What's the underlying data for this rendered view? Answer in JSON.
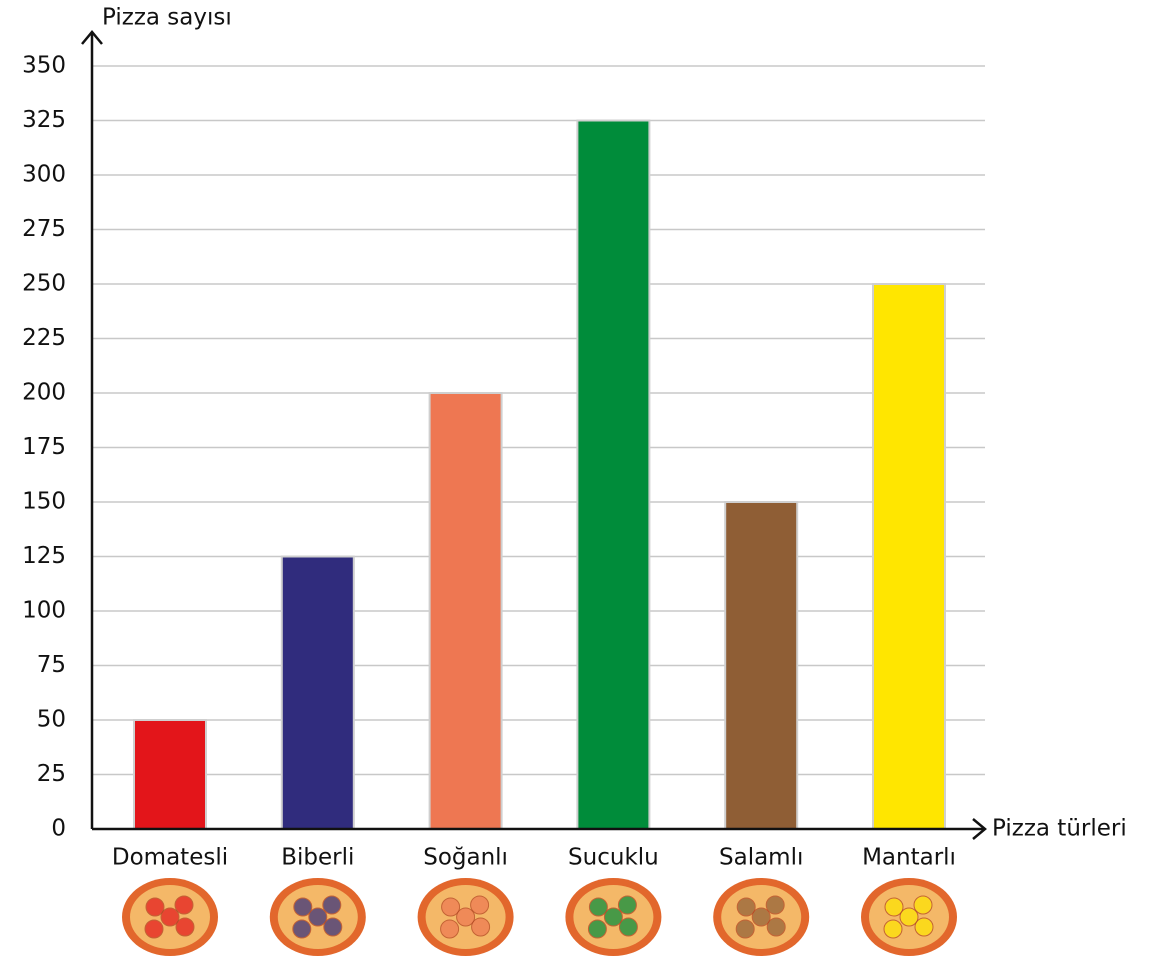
{
  "chart_data": {
    "type": "bar",
    "y_label": "Pizza sayısı",
    "x_label": "Pizza türleri",
    "categories": [
      "Domatesli",
      "Biberli",
      "Soğanlı",
      "Sucuklu",
      "Salamlı",
      "Mantarlı"
    ],
    "values": [
      50,
      125,
      200,
      325,
      150,
      250
    ],
    "colors": [
      "#e3151a",
      "#302c7d",
      "#ee7752",
      "#008c3a",
      "#8f5e35",
      "#ffe600"
    ],
    "ylim": [
      0,
      350
    ],
    "yticks": [
      0,
      25,
      50,
      75,
      100,
      125,
      150,
      175,
      200,
      225,
      250,
      275,
      300,
      325,
      350
    ],
    "grid": true
  }
}
